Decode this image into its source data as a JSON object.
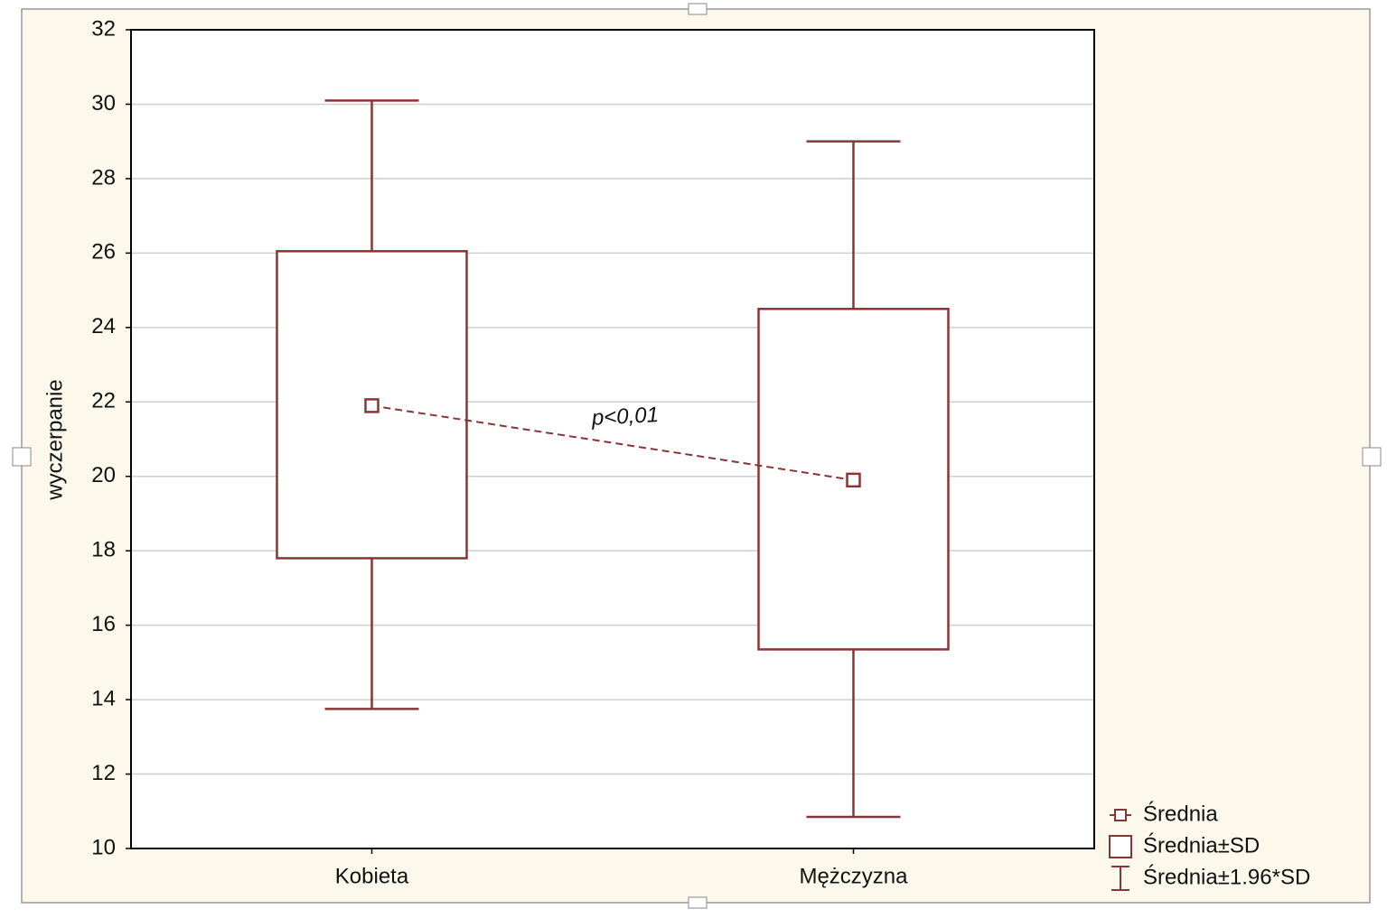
{
  "chart_data": {
    "type": "box",
    "categories": [
      "Kobieta",
      "Mężczyzna"
    ],
    "means": [
      21.9,
      19.9
    ],
    "sd_low": [
      17.8,
      15.35
    ],
    "sd_high": [
      26.05,
      24.5
    ],
    "ci_low": [
      13.75,
      10.85
    ],
    "ci_high": [
      30.1,
      29.0
    ],
    "color": "#8b3434",
    "ylabel": "wyczerpanie",
    "annotation": "p<0,01",
    "legend": [
      "Średnia",
      "Średnia±SD",
      "Średnia±1.96*SD"
    ],
    "legend_position": "lower right",
    "ylim": [
      10,
      32
    ],
    "yticks": [
      10,
      12,
      14,
      16,
      18,
      20,
      22,
      24,
      26,
      28,
      30,
      32
    ],
    "grid": true
  }
}
